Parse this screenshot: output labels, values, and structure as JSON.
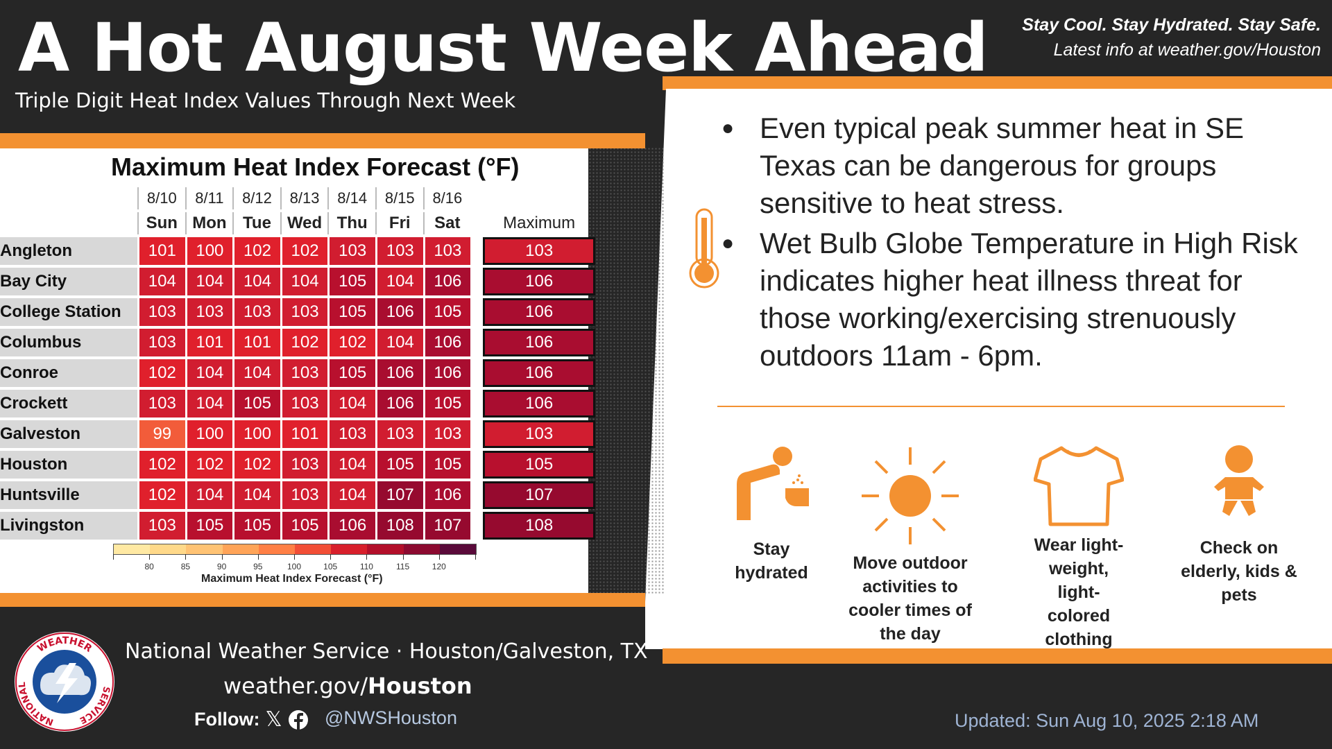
{
  "header": {
    "title": "A Hot August Week Ahead",
    "subtitle": "Triple Digit Heat Index Values Through Next Week",
    "tagline": "Stay Cool. Stay Hydrated. Stay Safe.",
    "latest": "Latest info at weather.gov/Houston"
  },
  "table": {
    "title": "Maximum Heat Index Forecast (°F)",
    "max_header": "Maximum",
    "dates": [
      "8/10",
      "8/11",
      "8/12",
      "8/13",
      "8/14",
      "8/15",
      "8/16"
    ],
    "days": [
      "Sun",
      "Mon",
      "Tue",
      "Wed",
      "Thu",
      "Fri",
      "Sat"
    ],
    "rows": [
      {
        "city": "Angleton",
        "values": [
          "101",
          "100",
          "102",
          "102",
          "103",
          "103",
          "103"
        ],
        "max": "103"
      },
      {
        "city": "Bay City",
        "values": [
          "104",
          "104",
          "104",
          "104",
          "105",
          "104",
          "106"
        ],
        "max": "106"
      },
      {
        "city": "College Station",
        "values": [
          "103",
          "103",
          "103",
          "103",
          "105",
          "106",
          "105"
        ],
        "max": "106"
      },
      {
        "city": "Columbus",
        "values": [
          "103",
          "101",
          "101",
          "102",
          "102",
          "104",
          "106"
        ],
        "max": "106"
      },
      {
        "city": "Conroe",
        "values": [
          "102",
          "104",
          "104",
          "103",
          "105",
          "106",
          "106"
        ],
        "max": "106"
      },
      {
        "city": "Crockett",
        "values": [
          "103",
          "104",
          "105",
          "103",
          "104",
          "106",
          "105"
        ],
        "max": "106"
      },
      {
        "city": "Galveston",
        "values": [
          "99",
          "100",
          "100",
          "101",
          "103",
          "103",
          "103"
        ],
        "max": "103"
      },
      {
        "city": "Houston",
        "values": [
          "102",
          "102",
          "102",
          "103",
          "104",
          "105",
          "105"
        ],
        "max": "105"
      },
      {
        "city": "Huntsville",
        "values": [
          "102",
          "104",
          "104",
          "103",
          "104",
          "107",
          "106"
        ],
        "max": "107"
      },
      {
        "city": "Livingston",
        "values": [
          "103",
          "105",
          "105",
          "105",
          "106",
          "108",
          "107"
        ],
        "max": "108"
      }
    ],
    "scale_ticks": [
      "80",
      "85",
      "90",
      "95",
      "100",
      "105",
      "110",
      "115",
      "120"
    ],
    "scale_label": "Maximum Heat Index Forecast (°F)",
    "scale_colors": [
      "#ffe9a3",
      "#ffd98a",
      "#ffc374",
      "#ffa458",
      "#ff7f45",
      "#f24e36",
      "#d81f2b",
      "#b30f2a",
      "#8c0a30",
      "#5a0a3a"
    ]
  },
  "bullets": [
    "Even typical peak summer heat in SE Texas can be dangerous for groups sensitive to heat stress.",
    "Wet Bulb Globe Temperature in High Risk indicates higher heat illness threat for those working/exercising strenuously outdoors 11am - 6pm."
  ],
  "tips": [
    {
      "label": "Stay hydrated",
      "icon": "drinking-fountain-icon"
    },
    {
      "label": "Move outdoor activities to cooler times of the day",
      "icon": "sun-icon"
    },
    {
      "label": "Wear light-weight, light-colored clothing",
      "icon": "tshirt-icon"
    },
    {
      "label": "Check on elderly, kids & pets",
      "icon": "baby-icon"
    }
  ],
  "footer": {
    "org": "National Weather Service · Houston/Galveston, TX",
    "site_prefix": "weather.gov/",
    "site_bold": "Houston",
    "follow": "Follow:",
    "handle": "@NWSHouston",
    "updated": "Updated: Sun Aug 10, 2025 2:18 AM",
    "logo_text": "NATIONAL WEATHER SERVICE"
  },
  "colors": {
    "accent": "#f39131",
    "background": "#262626"
  }
}
